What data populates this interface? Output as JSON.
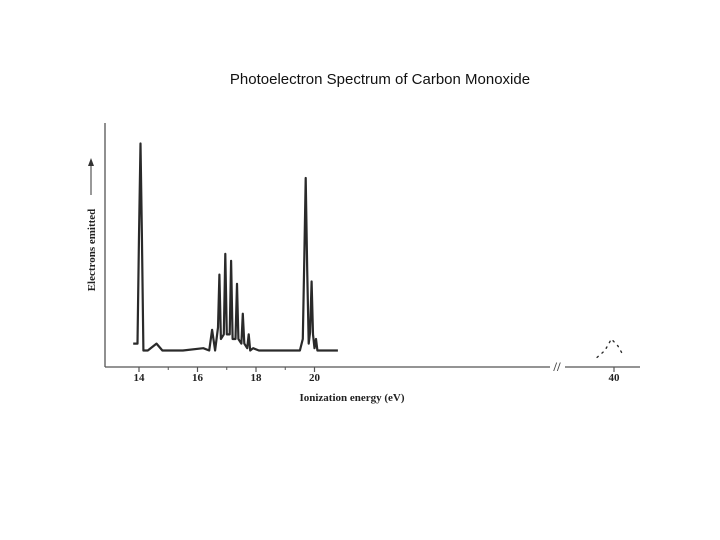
{
  "slide": {
    "title": "Photoelectron Spectrum of Carbon Monoxide"
  },
  "chart_data": {
    "type": "line",
    "title": "Photoelectron Spectrum of Carbon Monoxide",
    "xlabel": "Ionization energy (eV)",
    "ylabel": "Electrons emitted",
    "x_ticks": [
      "14",
      "16",
      "18",
      "20",
      "40"
    ],
    "axis_break": "//",
    "y_range": [
      0,
      1
    ],
    "grid": false,
    "line_color": "#2a2a2a",
    "series": [
      {
        "x": [
          13.8,
          13.95,
          14.0,
          14.05,
          14.1,
          14.15,
          14.3,
          14.6,
          14.8,
          15.5,
          16.2,
          16.4,
          16.5,
          16.6,
          16.7,
          16.75,
          16.8,
          16.9,
          16.95,
          17.0,
          17.1,
          17.15,
          17.2,
          17.3,
          17.35,
          17.4,
          17.5,
          17.55,
          17.6,
          17.7,
          17.75,
          17.8,
          17.9,
          18.1,
          18.5,
          19.0,
          19.5,
          19.6,
          19.65,
          19.7,
          19.75,
          19.8,
          19.85,
          19.9,
          19.95,
          20.0,
          20.05,
          20.1,
          20.15,
          20.5,
          20.8
        ],
        "y": [
          0.08,
          0.08,
          0.55,
          0.95,
          0.55,
          0.05,
          0.05,
          0.08,
          0.05,
          0.05,
          0.06,
          0.05,
          0.14,
          0.05,
          0.15,
          0.38,
          0.1,
          0.12,
          0.47,
          0.12,
          0.12,
          0.44,
          0.1,
          0.1,
          0.34,
          0.1,
          0.08,
          0.21,
          0.08,
          0.06,
          0.12,
          0.05,
          0.06,
          0.05,
          0.05,
          0.05,
          0.05,
          0.1,
          0.45,
          0.8,
          0.4,
          0.08,
          0.13,
          0.35,
          0.12,
          0.06,
          0.1,
          0.05,
          0.05,
          0.05,
          0.05
        ]
      },
      {
        "x": [
          38.7,
          39.3,
          39.8,
          40.3,
          40.7
        ],
        "y": [
          0.02,
          0.05,
          0.1,
          0.07,
          0.03
        ]
      }
    ]
  }
}
